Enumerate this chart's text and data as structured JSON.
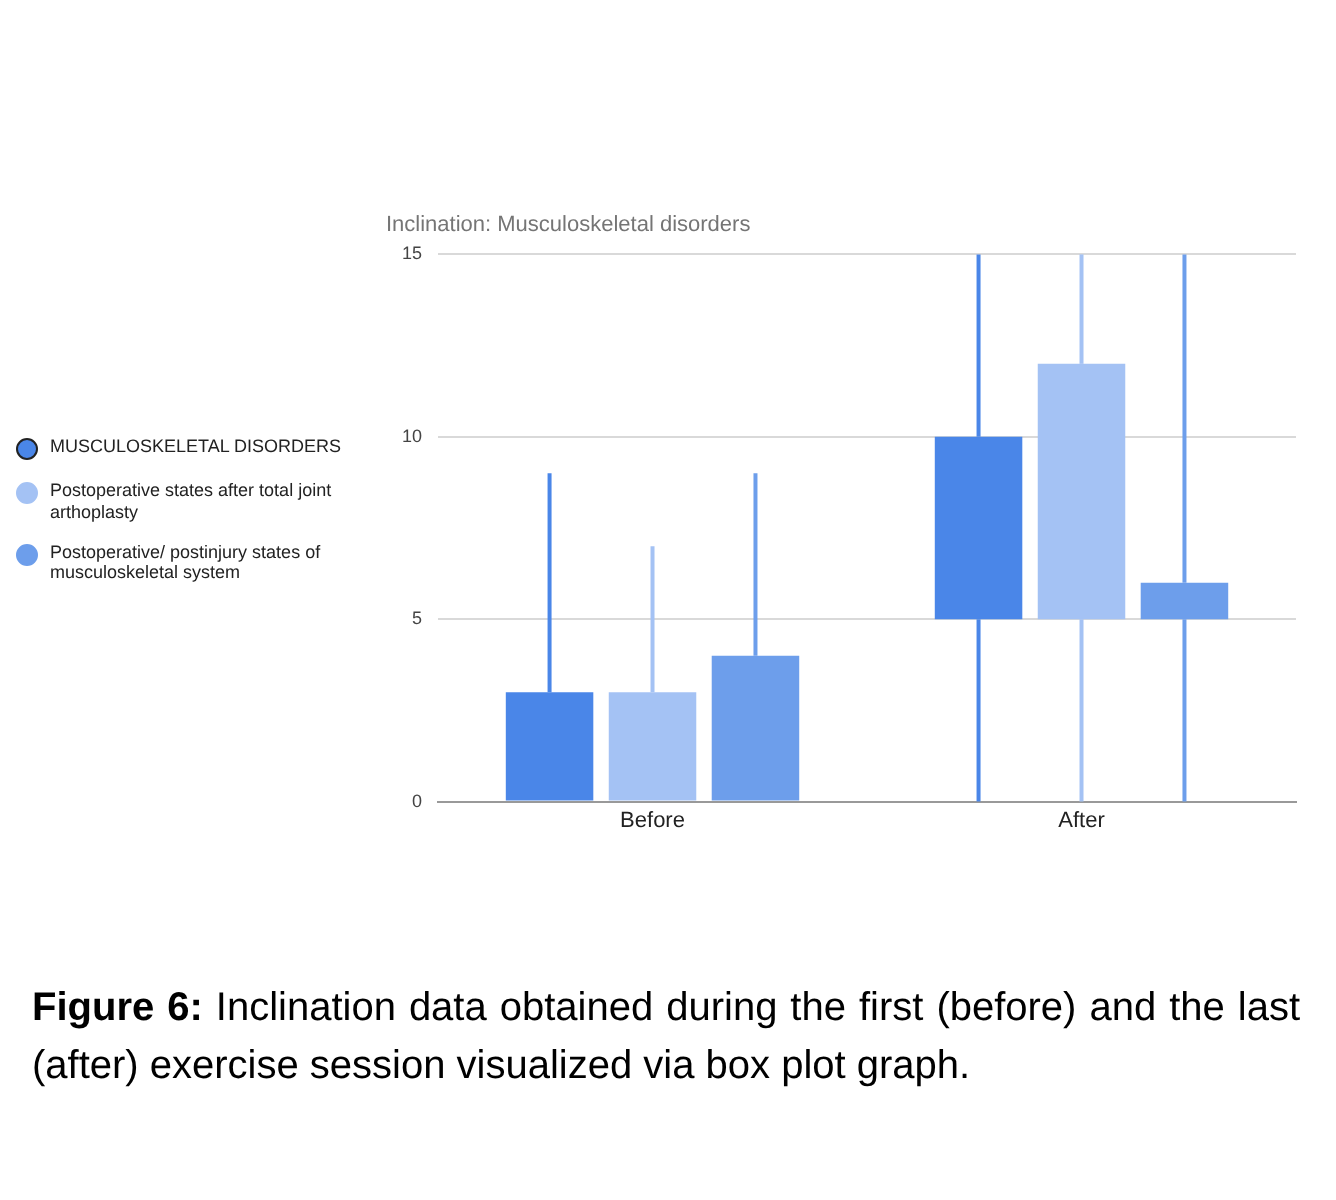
{
  "chart_data": {
    "type": "box",
    "title": "Inclination: Musculoskeletal disorders",
    "categories": [
      "Before",
      "After"
    ],
    "series": [
      {
        "name": "MUSCULOSKELETAL DISORDERS",
        "color": "#4a86e8",
        "boxes": [
          {
            "low": 0,
            "q1": 0,
            "q3": 3,
            "high": 9
          },
          {
            "low": 0,
            "q1": 5,
            "q3": 10,
            "high": 15
          }
        ]
      },
      {
        "name": "Postoperative states after total joint arthoplasty",
        "color": "#a4c2f4",
        "boxes": [
          {
            "low": 0,
            "q1": 0,
            "q3": 3,
            "high": 7
          },
          {
            "low": 0,
            "q1": 5,
            "q3": 12,
            "high": 15
          }
        ]
      },
      {
        "name": "Postoperative/ postinjury states of musculoskeletal system",
        "color": "#6d9eeb",
        "boxes": [
          {
            "low": 0,
            "q1": 0,
            "q3": 4,
            "high": 9
          },
          {
            "low": 0,
            "q1": 5,
            "q3": 6,
            "high": 15
          }
        ]
      }
    ],
    "ylim": [
      0,
      15
    ],
    "yticks": [
      0,
      5,
      10,
      15
    ],
    "grid": "y",
    "legend": "left",
    "annotations": [
      "Figure 6: Inclination data obtained during the first (before) and the last (after) exercise session visualized via box plot graph."
    ]
  }
}
